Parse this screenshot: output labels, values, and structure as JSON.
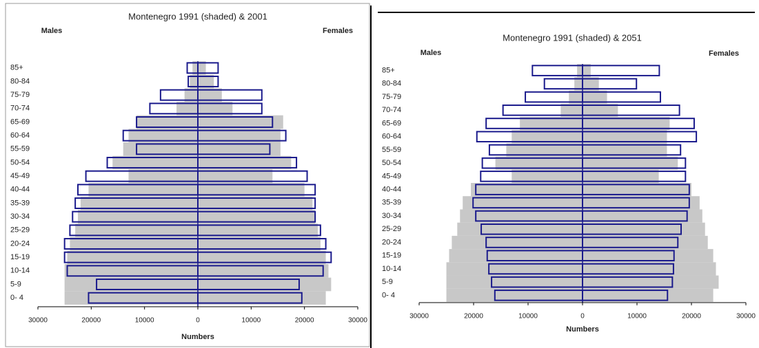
{
  "chart_data": [
    {
      "type": "pyramid",
      "title": "Montenegro 1991 (shaded) & 2001",
      "left_label": "Males",
      "right_label": "Females",
      "x_label": "Numbers",
      "categories": [
        "0- 4",
        "5-9",
        "10-14",
        "15-19",
        "20-24",
        "25-29",
        "30-34",
        "35-39",
        "40-44",
        "45-49",
        "50-54",
        "55-59",
        "60-64",
        "65-69",
        "70-74",
        "75-79",
        "80-84",
        "85+"
      ],
      "xlim": [
        -30000,
        30000
      ],
      "xticks": [
        {
          "value": -30000,
          "label": "30000"
        },
        {
          "value": -20000,
          "label": "20000"
        },
        {
          "value": -10000,
          "label": "10000"
        },
        0,
        10000,
        20000,
        30000
      ],
      "series": [
        {
          "side": "left",
          "style": "shaded",
          "color": "#c8c8c8",
          "values": [
            25000,
            25000,
            25000,
            24500,
            24000,
            23000,
            22500,
            22000,
            20500,
            13000,
            16000,
            14000,
            13000,
            11500,
            4000,
            2500,
            1500,
            1000
          ]
        },
        {
          "side": "right",
          "style": "shaded",
          "color": "#c8c8c8",
          "values": [
            24000,
            25000,
            24500,
            24000,
            23000,
            22500,
            22000,
            21500,
            20000,
            14000,
            17500,
            15500,
            15500,
            16000,
            6500,
            4500,
            3000,
            1500
          ]
        },
        {
          "side": "left",
          "style": "outline",
          "color": "#1a1a8c",
          "values": [
            20500,
            19000,
            24500,
            25000,
            25000,
            24000,
            23500,
            23000,
            22500,
            21000,
            17000,
            11500,
            14000,
            11500,
            9000,
            7000,
            1800,
            2000
          ]
        },
        {
          "side": "right",
          "style": "outline",
          "color": "#1a1a8c",
          "values": [
            19500,
            19000,
            23500,
            25000,
            24000,
            23000,
            22000,
            22000,
            22000,
            20500,
            18500,
            13500,
            16500,
            14000,
            12000,
            12000,
            3800,
            3800
          ]
        }
      ]
    },
    {
      "type": "pyramid",
      "title": "Montenegro 1991 (shaded) & 2051",
      "left_label": "Males",
      "right_label": "Females",
      "x_label": "Numbers",
      "categories": [
        "0- 4",
        "5-9",
        "10-14",
        "15-19",
        "20-24",
        "25-29",
        "30-34",
        "35-39",
        "40-44",
        "45-49",
        "50-54",
        "55-59",
        "60-64",
        "65-69",
        "70-74",
        "75-79",
        "80-84",
        "85+"
      ],
      "xlim": [
        -30000,
        30000
      ],
      "xticks": [
        {
          "value": -30000,
          "label": "30000"
        },
        {
          "value": -20000,
          "label": "20000"
        },
        {
          "value": -10000,
          "label": "10000"
        },
        0,
        10000,
        20000,
        30000
      ],
      "series": [
        {
          "side": "left",
          "style": "shaded",
          "color": "#c8c8c8",
          "values": [
            25000,
            25000,
            25000,
            24500,
            24000,
            23000,
            22500,
            22000,
            20500,
            13000,
            16000,
            14000,
            13000,
            11500,
            4000,
            2500,
            1500,
            1000
          ]
        },
        {
          "side": "right",
          "style": "shaded",
          "color": "#c8c8c8",
          "values": [
            24000,
            25000,
            24500,
            24000,
            23000,
            22500,
            22000,
            21500,
            20000,
            14000,
            17500,
            15500,
            15500,
            16000,
            6500,
            4500,
            3000,
            1500
          ]
        },
        {
          "side": "left",
          "style": "outline",
          "color": "#1a1a8c",
          "values": [
            16100,
            16700,
            17200,
            17500,
            17700,
            18600,
            19600,
            20100,
            19600,
            18700,
            18400,
            17100,
            19400,
            17700,
            14600,
            10500,
            7000,
            9200
          ]
        },
        {
          "side": "right",
          "style": "outline",
          "color": "#1a1a8c",
          "values": [
            15600,
            16500,
            16700,
            16800,
            17500,
            18100,
            19200,
            19600,
            19600,
            18900,
            18900,
            18000,
            20900,
            20500,
            17800,
            14300,
            9900,
            14100
          ]
        }
      ]
    }
  ]
}
